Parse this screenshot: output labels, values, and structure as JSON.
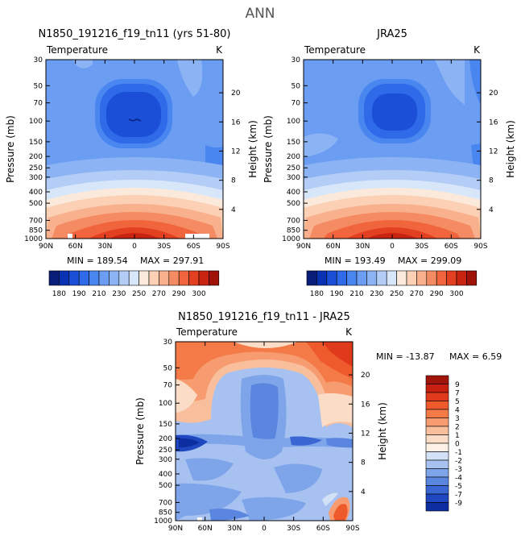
{
  "main_title": "ANN",
  "chart_data": [
    {
      "id": "model",
      "type": "heatmap",
      "title": "N1850_191216_f19_tn11 (yrs 51-80)",
      "left_label": "Temperature",
      "right_label": "K",
      "xlabel": "",
      "ylabel": "Pressure (mb)",
      "ylabel_right": "Height (km)",
      "x_ticks": [
        "90N",
        "60N",
        "30N",
        "0",
        "30S",
        "60S",
        "90S"
      ],
      "y_ticks": [
        "30",
        "50",
        "70",
        "100",
        "150",
        "200",
        "250",
        "300",
        "400",
        "500",
        "700",
        "850",
        "1000"
      ],
      "y2_ticks": [
        "20",
        "16",
        "12",
        "8",
        "4"
      ],
      "stats": {
        "min": "MIN = 189.54",
        "max": "MAX = 297.91"
      },
      "colorbar": {
        "labels": [
          "180",
          "190",
          "210",
          "230",
          "250",
          "270",
          "290",
          "300"
        ],
        "colors": [
          "#081d78",
          "#0a33b3",
          "#1c4fd8",
          "#2f6ae8",
          "#4a86f0",
          "#6b9df2",
          "#8cb4f5",
          "#b3cdf7",
          "#d8e6f9",
          "#fbeadc",
          "#fbd0b5",
          "#f8b08d",
          "#f58b63",
          "#f1653d",
          "#e34021",
          "#c82411",
          "#9e1208"
        ]
      },
      "min": 189.54,
      "max": 297.91
    },
    {
      "id": "obs",
      "type": "heatmap",
      "title": "JRA25",
      "left_label": "Temperature",
      "right_label": "K",
      "xlabel": "",
      "ylabel": "Pressure (mb)",
      "ylabel_right": "Height (km)",
      "x_ticks": [
        "90N",
        "60N",
        "30N",
        "0",
        "30S",
        "60S",
        "90S"
      ],
      "y_ticks": [
        "30",
        "50",
        "70",
        "100",
        "150",
        "200",
        "250",
        "300",
        "400",
        "500",
        "700",
        "850",
        "1000"
      ],
      "y2_ticks": [
        "20",
        "16",
        "12",
        "8",
        "4"
      ],
      "stats": {
        "min": "MIN = 193.49",
        "max": "MAX = 299.09"
      },
      "colorbar": {
        "labels": [
          "180",
          "190",
          "210",
          "230",
          "250",
          "270",
          "290",
          "300"
        ],
        "colors": [
          "#081d78",
          "#0a33b3",
          "#1c4fd8",
          "#2f6ae8",
          "#4a86f0",
          "#6b9df2",
          "#8cb4f5",
          "#b3cdf7",
          "#d8e6f9",
          "#fbeadc",
          "#fbd0b5",
          "#f8b08d",
          "#f58b63",
          "#f1653d",
          "#e34021",
          "#c82411",
          "#9e1208"
        ]
      },
      "min": 193.49,
      "max": 299.09
    },
    {
      "id": "diff",
      "type": "heatmap",
      "title": "N1850_191216_f19_tn11 - JRA25",
      "left_label": "Temperature",
      "right_label": "K",
      "xlabel": "",
      "ylabel": "Pressure (mb)",
      "ylabel_right": "Height (km)",
      "x_ticks": [
        "90N",
        "60N",
        "30N",
        "0",
        "30S",
        "60S",
        "90S"
      ],
      "y_ticks": [
        "30",
        "50",
        "70",
        "100",
        "150",
        "200",
        "250",
        "300",
        "400",
        "500",
        "700",
        "850",
        "1000"
      ],
      "y2_ticks": [
        "20",
        "16",
        "12",
        "8",
        "4"
      ],
      "stats": {
        "min": "MIN = -13.87",
        "max": "MAX =   6.59"
      },
      "colorbar": {
        "labels": [
          "9",
          "7",
          "5",
          "4",
          "3",
          "2",
          "1",
          "0",
          "-1",
          "-2",
          "-3",
          "-4",
          "-5",
          "-7",
          "-9"
        ],
        "colors": [
          "#a0140a",
          "#c82010",
          "#e03a1c",
          "#ef5a2c",
          "#f47a48",
          "#f79c70",
          "#f9bf9c",
          "#fbdcc6",
          "#fdf0e4",
          "#d3e1f6",
          "#a7c2f0",
          "#7ea4ea",
          "#5a86e0",
          "#3a66d4",
          "#1f48c0",
          "#0c2ea0"
        ]
      },
      "min": -13.87,
      "max": 6.59
    }
  ]
}
